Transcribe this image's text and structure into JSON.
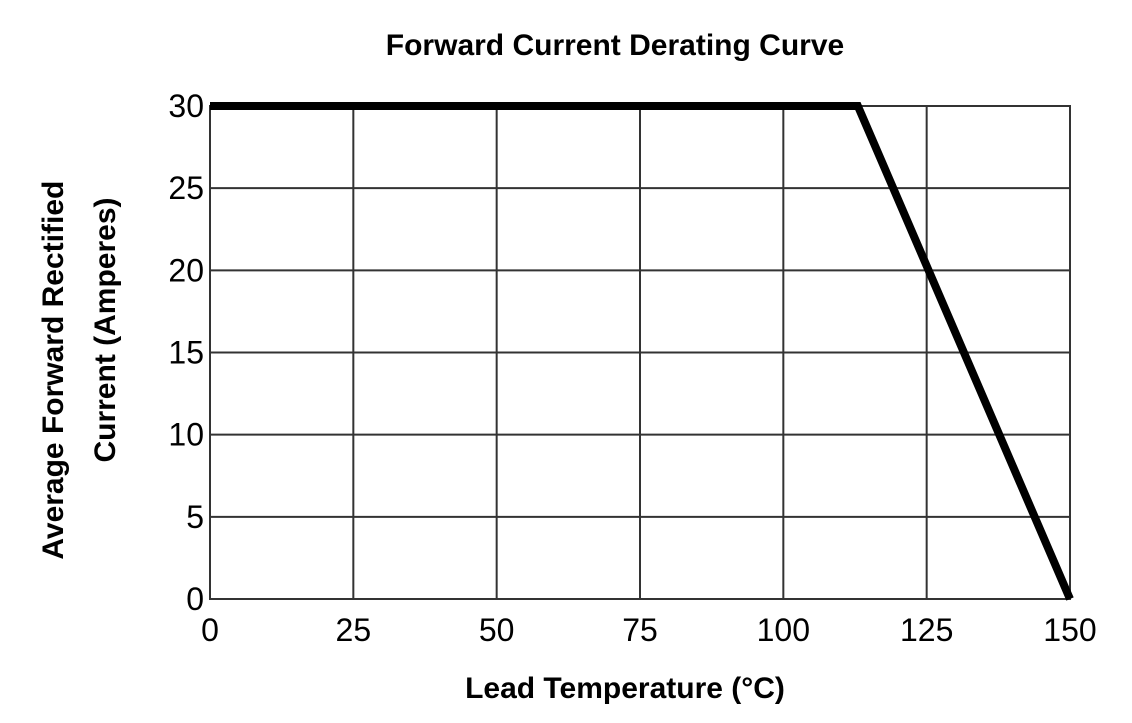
{
  "chart_data": {
    "type": "line",
    "title": "Forward Current Derating Curve",
    "xlabel": "Lead Temperature (°C)",
    "ylabel_lines": [
      "Average Forward Rectified",
      "Current (Amperes)"
    ],
    "xlim": [
      0,
      150
    ],
    "ylim": [
      0,
      30
    ],
    "x_ticks": [
      0,
      25,
      50,
      75,
      100,
      125,
      150
    ],
    "y_ticks": [
      0,
      5,
      10,
      15,
      20,
      25,
      30
    ],
    "grid": true,
    "series": [
      {
        "color": "#000000",
        "points": [
          [
            0,
            30
          ],
          [
            113,
            30
          ],
          [
            150,
            0
          ]
        ]
      }
    ]
  }
}
